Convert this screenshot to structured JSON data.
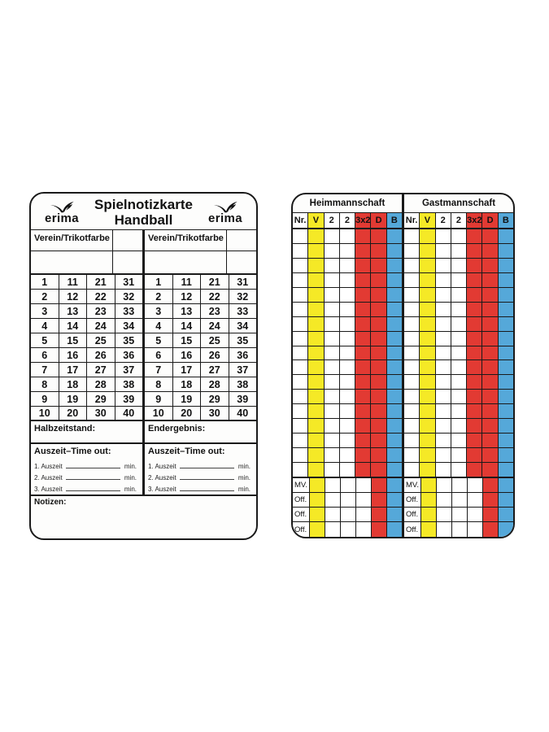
{
  "brand": {
    "wordmark": "erima"
  },
  "left_card": {
    "title_line1": "Spielnotizkarte",
    "title_line2": "Handball",
    "halves": [
      {
        "verein_header": "Verein/Trikotfarbe",
        "score_label": "Halbzeitstand:"
      },
      {
        "verein_header": "Verein/Trikotfarbe",
        "score_label": "Endergebnis:"
      }
    ],
    "grid_rows": [
      [
        1,
        11,
        21,
        31
      ],
      [
        2,
        12,
        22,
        32
      ],
      [
        3,
        13,
        23,
        33
      ],
      [
        4,
        14,
        24,
        34
      ],
      [
        5,
        15,
        25,
        35
      ],
      [
        6,
        16,
        26,
        36
      ],
      [
        7,
        17,
        27,
        37
      ],
      [
        8,
        18,
        28,
        38
      ],
      [
        9,
        19,
        29,
        39
      ],
      [
        10,
        20,
        30,
        40
      ]
    ],
    "timeout_heading": "Auszeit–Time out:",
    "timeout_lines": [
      {
        "label": "1. Auszeit",
        "unit": "min."
      },
      {
        "label": "2. Auszeit",
        "unit": "min."
      },
      {
        "label": "3. Auszeit",
        "unit": "min."
      }
    ],
    "notes_label": "Notizen:"
  },
  "right_card": {
    "teams": [
      "Heimmannschaft",
      "Gastmannschaft"
    ],
    "columns": [
      {
        "label": "Nr.",
        "color": "white"
      },
      {
        "label": "V",
        "color": "yellow"
      },
      {
        "label": "2",
        "color": "white"
      },
      {
        "label": "2",
        "color": "white"
      },
      {
        "label": "3x2",
        "color": "red"
      },
      {
        "label": "D",
        "color": "red"
      },
      {
        "label": "B",
        "color": "blue"
      }
    ],
    "body_row_count": 17,
    "special_rows": [
      {
        "label": "MV.",
        "colors": [
          "white",
          "yellow",
          "white",
          "white",
          "white",
          "red",
          "blue"
        ]
      },
      {
        "label": "Off.",
        "colors": [
          "white",
          "yellow",
          "white",
          "white",
          "white",
          "red",
          "blue"
        ]
      },
      {
        "label": "Off.",
        "colors": [
          "white",
          "yellow",
          "white",
          "white",
          "white",
          "red",
          "blue"
        ]
      },
      {
        "label": "Off.",
        "colors": [
          "white",
          "yellow",
          "white",
          "white",
          "white",
          "red",
          "blue"
        ]
      }
    ]
  },
  "colors": {
    "yellow": "#f5e926",
    "red": "#e23a33",
    "blue": "#55a8d9",
    "line": "#1a1a1a"
  }
}
